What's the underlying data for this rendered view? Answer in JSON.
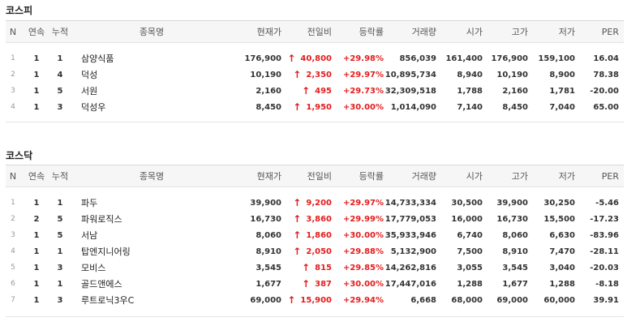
{
  "columns": [
    "N",
    "연속",
    "누적",
    "종목명",
    "현재가",
    "전일비",
    "등락률",
    "거래량",
    "시가",
    "고가",
    "저가",
    "PER"
  ],
  "kospi": {
    "title": "코스피",
    "rows": [
      {
        "n": "1",
        "streak": "1",
        "cum": "1",
        "name": "삼양식품",
        "price": "176,900",
        "change": "40,800",
        "rate": "+29.98%",
        "volume": "856,039",
        "open": "161,400",
        "high": "176,900",
        "low": "159,100",
        "per": "16.04"
      },
      {
        "n": "2",
        "streak": "1",
        "cum": "4",
        "name": "덕성",
        "price": "10,190",
        "change": "2,350",
        "rate": "+29.97%",
        "volume": "10,895,734",
        "open": "8,940",
        "high": "10,190",
        "low": "8,900",
        "per": "78.38"
      },
      {
        "n": "3",
        "streak": "1",
        "cum": "5",
        "name": "서원",
        "price": "2,160",
        "change": "495",
        "rate": "+29.73%",
        "volume": "32,309,518",
        "open": "1,788",
        "high": "2,160",
        "low": "1,781",
        "per": "-20.00"
      },
      {
        "n": "4",
        "streak": "1",
        "cum": "3",
        "name": "덕성우",
        "price": "8,450",
        "change": "1,950",
        "rate": "+30.00%",
        "volume": "1,014,090",
        "open": "7,140",
        "high": "8,450",
        "low": "7,040",
        "per": "65.00"
      }
    ]
  },
  "kosdaq": {
    "title": "코스닥",
    "rows": [
      {
        "n": "1",
        "streak": "1",
        "cum": "1",
        "name": "파두",
        "price": "39,900",
        "change": "9,200",
        "rate": "+29.97%",
        "volume": "14,733,334",
        "open": "30,500",
        "high": "39,900",
        "low": "30,250",
        "per": "-5.46"
      },
      {
        "n": "2",
        "streak": "2",
        "cum": "5",
        "name": "파워로직스",
        "price": "16,730",
        "change": "3,860",
        "rate": "+29.99%",
        "volume": "17,779,053",
        "open": "16,000",
        "high": "16,730",
        "low": "15,500",
        "per": "-17.23"
      },
      {
        "n": "3",
        "streak": "1",
        "cum": "5",
        "name": "서남",
        "price": "8,060",
        "change": "1,860",
        "rate": "+30.00%",
        "volume": "35,933,946",
        "open": "6,740",
        "high": "8,060",
        "low": "6,630",
        "per": "-83.96"
      },
      {
        "n": "4",
        "streak": "1",
        "cum": "1",
        "name": "탑엔지니어링",
        "price": "8,910",
        "change": "2,050",
        "rate": "+29.88%",
        "volume": "5,132,900",
        "open": "7,500",
        "high": "8,910",
        "low": "7,470",
        "per": "-28.11"
      },
      {
        "n": "5",
        "streak": "1",
        "cum": "3",
        "name": "모비스",
        "price": "3,545",
        "change": "815",
        "rate": "+29.85%",
        "volume": "14,262,816",
        "open": "3,055",
        "high": "3,545",
        "low": "3,040",
        "per": "-20.03"
      },
      {
        "n": "6",
        "streak": "1",
        "cum": "1",
        "name": "골드앤에스",
        "price": "1,677",
        "change": "387",
        "rate": "+30.00%",
        "volume": "17,447,016",
        "open": "1,288",
        "high": "1,677",
        "low": "1,288",
        "per": "-8.18"
      },
      {
        "n": "7",
        "streak": "1",
        "cum": "3",
        "name": "루트로닉3우C",
        "price": "69,000",
        "change": "15,900",
        "rate": "+29.94%",
        "volume": "6,668",
        "open": "68,000",
        "high": "69,000",
        "low": "60,000",
        "per": "39.91"
      }
    ]
  },
  "colors": {
    "up": "#e41c1c",
    "header_bg": "#f6f6f6"
  },
  "icons": {
    "up_arrow": "up-arrow-icon"
  }
}
